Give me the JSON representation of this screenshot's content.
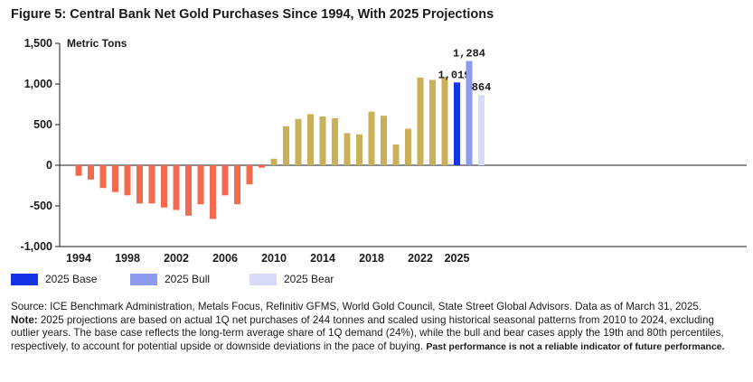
{
  "title": "Figure 5: Central Bank Net Gold Purchases Since 1994, With 2025 Projections",
  "chart_data": {
    "type": "bar",
    "ylabel": "Metric Tons",
    "ylim": [
      -1000,
      1500
    ],
    "yticks": [
      -1000,
      -500,
      0,
      500,
      1000,
      1500
    ],
    "ytick_labels": [
      "-1,000",
      "-500",
      "0",
      "500",
      "1,000",
      "1,500"
    ],
    "xtick_labels": [
      "1994",
      "1998",
      "2002",
      "2006",
      "2010",
      "2014",
      "2018",
      "2022",
      "2025"
    ],
    "historical": {
      "years": [
        "1994",
        "1995",
        "1996",
        "1997",
        "1998",
        "1999",
        "2000",
        "2001",
        "2002",
        "2003",
        "2004",
        "2005",
        "2006",
        "2007",
        "2008",
        "2009",
        "2010",
        "2011",
        "2012",
        "2013",
        "2014",
        "2015",
        "2016",
        "2017",
        "2018",
        "2019",
        "2020",
        "2021",
        "2022",
        "2023",
        "2024"
      ],
      "values": [
        -130,
        -175,
        -280,
        -330,
        -370,
        -470,
        -470,
        -520,
        -550,
        -620,
        -480,
        -660,
        -370,
        -480,
        -235,
        -30,
        80,
        480,
        570,
        630,
        600,
        580,
        395,
        380,
        660,
        610,
        255,
        450,
        1080,
        1050,
        1085
      ]
    },
    "projections": [
      {
        "name": "2025 Base",
        "value": 1019,
        "label": "1,019",
        "color": "#1434e6"
      },
      {
        "name": "2025 Bull",
        "value": 1284,
        "label": "1,284",
        "color": "#8c9bf0"
      },
      {
        "name": "2025 Bear",
        "value": 864,
        "label": "864",
        "color": "#d9dcf8"
      }
    ],
    "colors": {
      "negative": "#f46a4e",
      "positive": "#c9b15a"
    },
    "grid": false
  },
  "legend": [
    {
      "name": "2025 Base",
      "color": "#1434e6"
    },
    {
      "name": "2025 Bull",
      "color": "#8c9bf0"
    },
    {
      "name": "2025 Bear",
      "color": "#d9dcf8"
    }
  ],
  "footnote": {
    "source": "Source: ICE Benchmark Administration, Metals Focus, Refinitiv GFMS, World Gold Council, State Street Global Advisors. Data as of March 31, 2025.",
    "note_label": "Note:",
    "note_text": " 2025 projections are based on actual 1Q net purchases of 244 tonnes and scaled using historical seasonal patterns from 2010 to 2024, excluding outlier years. The base case reflects the long-term average share of 1Q demand (24%), while the bull and bear cases apply the 19th and 80th percentiles, respectively, to account for potential upside or downside deviations in the pace of buying. ",
    "disclaimer": "Past performance is not a reliable indicator of future performance."
  }
}
